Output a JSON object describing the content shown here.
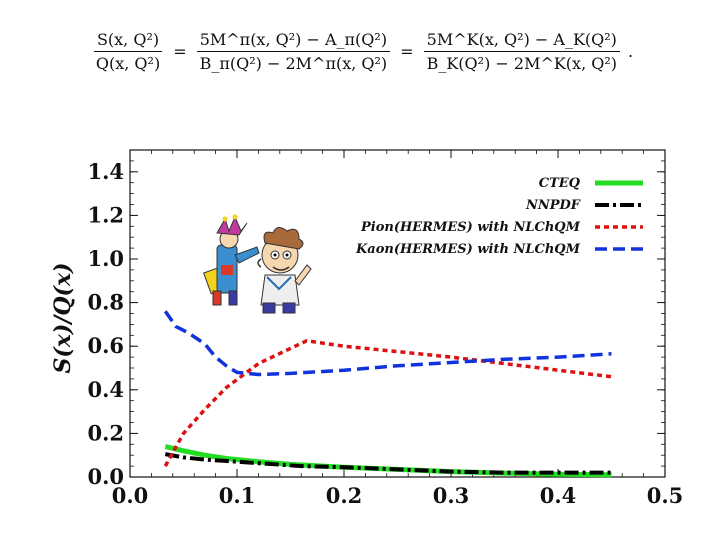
{
  "formula": {
    "lhs": {
      "numerator": "S(x, Q²)",
      "denominator": "Q(x, Q²)"
    },
    "eq1": "=",
    "mid": {
      "numerator": "5M^π(x, Q²) − A_π(Q²)",
      "denominator": "B_π(Q²) − 2M^π(x, Q²)"
    },
    "eq2": "=",
    "rhs": {
      "numerator": "5M^K(x, Q²) − A_K(Q²)",
      "denominator": "B_K(Q²) − 2M^K(x, Q²)"
    },
    "end": "."
  },
  "chart_data": {
    "type": "line",
    "title": "",
    "xlabel": "",
    "ylabel": "S(x)/Q(x)",
    "xlim": [
      0.0,
      0.5
    ],
    "ylim": [
      0.0,
      1.5
    ],
    "xticks": [
      "0.0",
      "0.1",
      "0.2",
      "0.3",
      "0.4",
      "0.5"
    ],
    "yticks": [
      "0.0",
      "0.2",
      "0.4",
      "0.6",
      "0.8",
      "1.0",
      "1.2",
      "1.4"
    ],
    "legend_position": "top-right",
    "series": [
      {
        "name": "CTEQ",
        "color": "#22dd22",
        "style": "solid",
        "x": [
          0.033,
          0.05,
          0.07,
          0.09,
          0.12,
          0.15,
          0.2,
          0.25,
          0.3,
          0.35,
          0.4,
          0.45
        ],
        "y": [
          0.14,
          0.12,
          0.1,
          0.085,
          0.07,
          0.058,
          0.045,
          0.035,
          0.025,
          0.018,
          0.013,
          0.01
        ]
      },
      {
        "name": "NNPDF",
        "color": "#000000",
        "style": "dashdot",
        "x": [
          0.033,
          0.05,
          0.07,
          0.1,
          0.13,
          0.16,
          0.2,
          0.25,
          0.3,
          0.35,
          0.4,
          0.45
        ],
        "y": [
          0.105,
          0.09,
          0.08,
          0.07,
          0.06,
          0.05,
          0.045,
          0.035,
          0.025,
          0.02,
          0.02,
          0.02
        ]
      },
      {
        "name": "Pion(HERMES) with NLChQM",
        "color": "#dd1111",
        "style": "dotted",
        "x": [
          0.033,
          0.05,
          0.07,
          0.09,
          0.12,
          0.165,
          0.2,
          0.25,
          0.3,
          0.35,
          0.4,
          0.45
        ],
        "y": [
          0.05,
          0.2,
          0.31,
          0.41,
          0.52,
          0.625,
          0.6,
          0.575,
          0.55,
          0.52,
          0.49,
          0.46
        ]
      },
      {
        "name": "Kaon(HERMES) with NLChQM",
        "color": "#1133dd",
        "style": "dashed",
        "x": [
          0.033,
          0.043,
          0.055,
          0.07,
          0.08,
          0.09,
          0.1,
          0.12,
          0.15,
          0.2,
          0.25,
          0.3,
          0.35,
          0.4,
          0.45
        ],
        "y": [
          0.76,
          0.69,
          0.66,
          0.61,
          0.55,
          0.51,
          0.48,
          0.47,
          0.475,
          0.49,
          0.51,
          0.525,
          0.54,
          0.55,
          0.565
        ]
      }
    ]
  }
}
